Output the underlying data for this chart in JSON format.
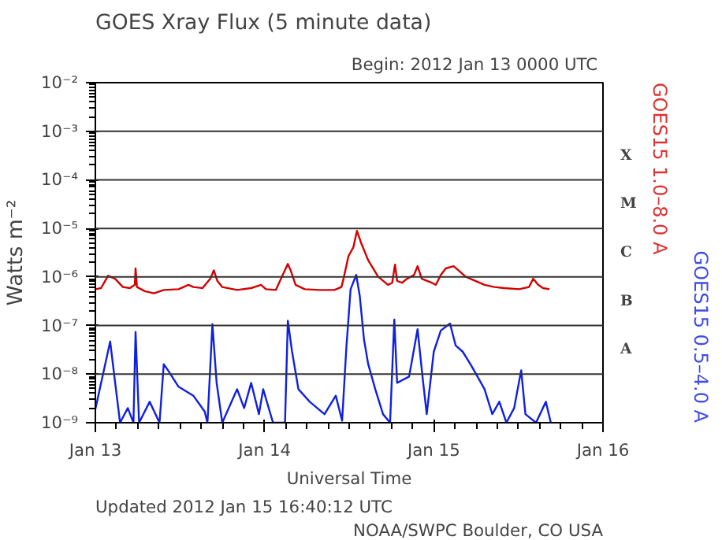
{
  "chart_data": {
    "type": "line",
    "title": "GOES Xray Flux (5 minute data)",
    "subtitle": "Begin:  2012 Jan 13 0000 UTC",
    "xlabel": "Universal Time",
    "ylabel": "Watts m⁻²",
    "annotations": [
      "Updated 2012 Jan 15 16:40:12 UTC",
      "NOAA/SWPC Boulder, CO USA"
    ],
    "xlim": [
      "2012-01-13",
      "2012-01-16"
    ],
    "xticks": [
      {
        "value": "2012-01-13",
        "label": "Jan 13"
      },
      {
        "value": "2012-01-14",
        "label": "Jan 14"
      },
      {
        "value": "2012-01-15",
        "label": "Jan 15"
      },
      {
        "value": "2012-01-16",
        "label": "Jan 16"
      }
    ],
    "ylim": [
      1e-09,
      0.01
    ],
    "yticks": [
      {
        "value": 1e-09,
        "label": "10⁻⁹"
      },
      {
        "value": 1e-08,
        "label": "10⁻⁸"
      },
      {
        "value": 1e-07,
        "label": "10⁻⁷"
      },
      {
        "value": 1e-06,
        "label": "10⁻⁶"
      },
      {
        "value": 1e-05,
        "label": "10⁻⁵"
      },
      {
        "value": 0.0001,
        "label": "10⁻⁴"
      },
      {
        "value": 0.001,
        "label": "10⁻³"
      },
      {
        "value": 0.01,
        "label": "10⁻²"
      }
    ],
    "ref_lines": [
      {
        "axis": "y",
        "value": 1e-08,
        "label": "A"
      },
      {
        "axis": "y",
        "value": 1e-07,
        "label": "B"
      },
      {
        "axis": "y",
        "value": 1e-06,
        "label": "C"
      },
      {
        "axis": "y",
        "value": 1e-05,
        "label": "M"
      },
      {
        "axis": "y",
        "value": 0.0001,
        "label": "X"
      },
      {
        "axis": "y",
        "value": 0.001,
        "label": null
      }
    ],
    "log": true,
    "legend": false,
    "line_style": "solid",
    "marker": "none",
    "series": [
      {
        "name": "GOES15 1.0–8.0 A",
        "color": "#d40000",
        "x": [
          "2012-01-13T00:00",
          "2012-01-13T00:48",
          "2012-01-13T01:48",
          "2012-01-13T02:48",
          "2012-01-13T03:54",
          "2012-01-13T04:54",
          "2012-01-13T05:36",
          "2012-01-13T05:42",
          "2012-01-13T05:54",
          "2012-01-13T07:00",
          "2012-01-13T08:18",
          "2012-01-13T09:42",
          "2012-01-13T11:48",
          "2012-01-13T13:12",
          "2012-01-13T13:54",
          "2012-01-13T15:12",
          "2012-01-13T16:18",
          "2012-01-13T16:48",
          "2012-01-13T17:18",
          "2012-01-13T18:00",
          "2012-01-13T20:06",
          "2012-01-13T22:06",
          "2012-01-13T23:30",
          "2012-01-14T00:12",
          "2012-01-14T01:36",
          "2012-01-14T03:00",
          "2012-01-14T03:18",
          "2012-01-14T03:42",
          "2012-01-14T04:24",
          "2012-01-14T05:42",
          "2012-01-14T07:48",
          "2012-01-14T09:54",
          "2012-01-14T10:54",
          "2012-01-14T11:12",
          "2012-01-14T11:54",
          "2012-01-14T12:36",
          "2012-01-14T13:06",
          "2012-01-14T13:42",
          "2012-01-14T14:42",
          "2012-01-14T16:06",
          "2012-01-14T17:30",
          "2012-01-14T18:06",
          "2012-01-14T18:30",
          "2012-01-14T18:48",
          "2012-01-14T19:30",
          "2012-01-14T20:12",
          "2012-01-14T21:12",
          "2012-01-14T21:42",
          "2012-01-14T22:18",
          "2012-01-14T23:42",
          "2012-01-15T00:18",
          "2012-01-15T01:00",
          "2012-01-15T01:42",
          "2012-01-15T02:48",
          "2012-01-15T03:30",
          "2012-01-15T04:30",
          "2012-01-15T05:54",
          "2012-01-15T07:12",
          "2012-01-15T08:36",
          "2012-01-15T10:00",
          "2012-01-15T12:06",
          "2012-01-15T13:30",
          "2012-01-15T14:06",
          "2012-01-15T14:48",
          "2012-01-15T15:30",
          "2012-01-15T16:24"
        ],
        "values": [
          5.6e-07,
          5.9e-07,
          1.06e-06,
          9.2e-07,
          6.2e-07,
          5.9e-07,
          6.9e-07,
          1.5e-06,
          6.2e-07,
          5.1e-07,
          4.6e-07,
          5.4e-07,
          5.6e-07,
          6.9e-07,
          6.2e-07,
          5.9e-07,
          9.2e-07,
          1.37e-06,
          8.3e-07,
          6.2e-07,
          5.4e-07,
          5.9e-07,
          6.9e-07,
          5.6e-07,
          5.4e-07,
          1.5e-06,
          1.85e-06,
          1.37e-06,
          6.9e-07,
          5.6e-07,
          5.4e-07,
          5.4e-07,
          6.2e-07,
          9.2e-07,
          2.7e-06,
          4.1e-06,
          8.9e-06,
          5e-06,
          2.2e-06,
          1.02e-06,
          6.9e-07,
          7.6e-07,
          1.8e-06,
          8.3e-07,
          7.6e-07,
          9.2e-07,
          1.1e-06,
          1.67e-06,
          9.2e-07,
          7.6e-07,
          6.9e-07,
          1.1e-06,
          1.5e-06,
          1.67e-06,
          1.37e-06,
          1.02e-06,
          8.3e-07,
          6.9e-07,
          6.2e-07,
          5.9e-07,
          5.6e-07,
          6.2e-07,
          9.2e-07,
          6.9e-07,
          5.9e-07,
          5.6e-07
        ]
      },
      {
        "name": "GOES15 0.5–4.0 A",
        "color": "#1020e0",
        "x": [
          "2012-01-13T00:00",
          "2012-01-13T02:06",
          "2012-01-13T02:42",
          "2012-01-13T03:30",
          "2012-01-13T04:36",
          "2012-01-13T05:24",
          "2012-01-13T05:42",
          "2012-01-13T06:12",
          "2012-01-13T07:42",
          "2012-01-13T09:06",
          "2012-01-13T09:42",
          "2012-01-13T10:18",
          "2012-01-13T11:48",
          "2012-01-13T13:54",
          "2012-01-13T15:30",
          "2012-01-13T15:54",
          "2012-01-13T16:36",
          "2012-01-13T17:12",
          "2012-01-13T18:00",
          "2012-01-13T20:06",
          "2012-01-13T21:06",
          "2012-01-13T22:06",
          "2012-01-13T23:12",
          "2012-01-13T23:48",
          "2012-01-14T01:12",
          "2012-01-14T02:54",
          "2012-01-14T03:18",
          "2012-01-14T03:54",
          "2012-01-14T04:48",
          "2012-01-14T06:24",
          "2012-01-14T08:30",
          "2012-01-14T10:06",
          "2012-01-14T11:00",
          "2012-01-14T11:36",
          "2012-01-14T12:12",
          "2012-01-14T13:00",
          "2012-01-14T13:30",
          "2012-01-14T14:06",
          "2012-01-14T14:42",
          "2012-01-14T15:42",
          "2012-01-14T16:48",
          "2012-01-14T17:48",
          "2012-01-14T18:24",
          "2012-01-14T18:48",
          "2012-01-14T20:30",
          "2012-01-14T21:42",
          "2012-01-14T22:24",
          "2012-01-14T23:00",
          "2012-01-15T00:00",
          "2012-01-15T01:00",
          "2012-01-15T02:18",
          "2012-01-15T03:06",
          "2012-01-15T04:06",
          "2012-01-15T05:12",
          "2012-01-15T06:12",
          "2012-01-15T07:12",
          "2012-01-15T08:18",
          "2012-01-15T09:18",
          "2012-01-15T10:18",
          "2012-01-15T11:24",
          "2012-01-15T12:24",
          "2012-01-15T13:00",
          "2012-01-15T14:30",
          "2012-01-15T15:54",
          "2012-01-15T16:36"
        ],
        "values": [
          1.9e-09,
          4.7e-08,
          8.9e-09,
          1e-09,
          2e-09,
          1e-09,
          7.4e-08,
          1e-09,
          2.7e-09,
          1e-09,
          1.6e-08,
          1.2e-08,
          5.5e-09,
          3.6e-09,
          1.7e-09,
          1e-09,
          1.07e-07,
          6.6e-09,
          1e-09,
          4.9e-09,
          2e-09,
          6.6e-09,
          1.5e-09,
          4.9e-09,
          1e-09,
          1e-09,
          1.26e-07,
          2.9e-08,
          4.9e-09,
          2.7e-09,
          1.5e-09,
          3.6e-09,
          1.1e-09,
          3.5e-08,
          5.6e-07,
          1.1e-06,
          4.1e-07,
          5.2e-08,
          1.6e-08,
          4.9e-09,
          1.5e-09,
          1e-09,
          1.33e-07,
          6.6e-09,
          8.9e-09,
          8.4e-08,
          8.9e-09,
          1.5e-09,
          2.9e-08,
          7.9e-08,
          1.1e-07,
          3.9e-08,
          2.9e-08,
          1.6e-08,
          8.9e-09,
          4.9e-09,
          1.5e-09,
          2.7e-09,
          1e-09,
          2e-09,
          1.2e-08,
          1.5e-09,
          1e-09,
          2.7e-09,
          1e-09
        ]
      }
    ]
  }
}
